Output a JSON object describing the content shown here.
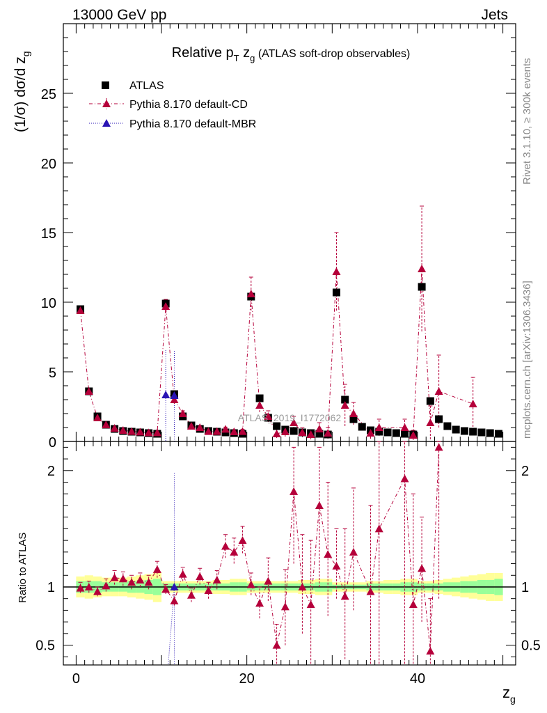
{
  "header": {
    "left": "13000 GeV pp",
    "right": "Jets"
  },
  "side_labels": {
    "rivet": "Rivet 3.1.10, ≥ 300k events",
    "url": "mcplots.cern.ch [arXiv:1306.3436]"
  },
  "watermark": "ATLAS_2019_I1772062",
  "legend": [
    {
      "label": "ATLAS",
      "marker": "square",
      "color": "#000000"
    },
    {
      "label": "Pythia 8.170 default-CD",
      "marker": "triangle",
      "color": "#b5003a"
    },
    {
      "label": "Pythia 8.170 default-MBR",
      "marker": "triangle",
      "color": "#2a14b4"
    }
  ],
  "colors": {
    "band_outer": "#ffff99",
    "band_inner": "#99ff99",
    "cd": "#b5003a",
    "mbr": "#2a14b4"
  },
  "chart_data": [
    {
      "type": "scatter",
      "panel": "main",
      "title": "Relative p_T z_g (ATLAS soft-drop observables)",
      "title_parts": {
        "a": "Relative p",
        "sub1": "T",
        "b": " z",
        "sub2": "g",
        "c": " (ATLAS soft-drop observables)"
      },
      "ylabel": "(1/σ) dσ/d z_g",
      "ylabel_parts": {
        "a": "(1/σ) dσ/d z",
        "sub": "g"
      },
      "xlim": [
        -1.5,
        51.5
      ],
      "ylim": [
        0,
        30
      ],
      "yticks": [
        0,
        5,
        10,
        15,
        20,
        25
      ],
      "x": [
        0.5,
        1.5,
        2.5,
        3.5,
        4.5,
        5.5,
        6.5,
        7.5,
        8.5,
        9.5,
        10.5,
        11.5,
        12.5,
        13.5,
        14.5,
        15.5,
        16.5,
        17.5,
        18.5,
        19.5,
        20.5,
        21.5,
        22.5,
        23.5,
        24.5,
        25.5,
        26.5,
        27.5,
        28.5,
        29.5,
        30.5,
        31.5,
        32.5,
        33.5,
        34.5,
        35.5,
        36.5,
        37.5,
        38.5,
        39.5,
        40.5,
        41.5,
        42.5,
        43.5,
        44.5,
        45.5,
        46.5,
        47.5,
        48.5,
        49.5
      ],
      "series": [
        {
          "name": "ATLAS",
          "values": [
            9.5,
            3.6,
            1.8,
            1.2,
            0.9,
            0.75,
            0.7,
            0.65,
            0.6,
            0.55,
            9.9,
            3.4,
            1.8,
            1.15,
            0.9,
            0.75,
            0.7,
            0.65,
            0.6,
            0.55,
            10.4,
            3.1,
            1.7,
            1.1,
            0.85,
            0.75,
            0.65,
            0.6,
            0.55,
            0.5,
            10.7,
            3.0,
            1.6,
            1.05,
            0.8,
            0.7,
            0.65,
            0.6,
            0.55,
            0.5,
            11.1,
            2.9,
            1.6,
            1.1,
            0.85,
            0.75,
            0.7,
            0.65,
            0.6,
            0.55
          ]
        },
        {
          "name": "Pythia 8.170 default-CD",
          "points": [
            {
              "x": 0.5,
              "y": 9.4,
              "err": 0.2
            },
            {
              "x": 1.5,
              "y": 3.6,
              "err": 0.15
            },
            {
              "x": 2.5,
              "y": 1.7,
              "err": 0.1
            },
            {
              "x": 3.5,
              "y": 1.2,
              "err": 0.1
            },
            {
              "x": 4.5,
              "y": 0.95,
              "err": 0.1
            },
            {
              "x": 5.5,
              "y": 0.8,
              "err": 0.1
            },
            {
              "x": 6.5,
              "y": 0.72,
              "err": 0.1
            },
            {
              "x": 7.5,
              "y": 0.68,
              "err": 0.1
            },
            {
              "x": 8.5,
              "y": 0.63,
              "err": 0.1
            },
            {
              "x": 9.5,
              "y": 0.63,
              "err": 0.1
            },
            {
              "x": 10.5,
              "y": 9.7,
              "err": 0.5
            },
            {
              "x": 11.5,
              "y": 3.0,
              "err": 0.3
            },
            {
              "x": 12.5,
              "y": 2.0,
              "err": 0.2
            },
            {
              "x": 13.5,
              "y": 1.1,
              "err": 0.15
            },
            {
              "x": 14.5,
              "y": 1.0,
              "err": 0.15
            },
            {
              "x": 15.5,
              "y": 0.72,
              "err": 0.12
            },
            {
              "x": 16.5,
              "y": 0.72,
              "err": 0.12
            },
            {
              "x": 17.5,
              "y": 0.88,
              "err": 0.15
            },
            {
              "x": 18.5,
              "y": 0.7,
              "err": 0.15
            },
            {
              "x": 19.5,
              "y": 0.72,
              "err": 0.15
            },
            {
              "x": 20.5,
              "y": 10.6,
              "err": 1.2
            },
            {
              "x": 21.5,
              "y": 2.6,
              "err": 0.5
            },
            {
              "x": 22.5,
              "y": 1.8,
              "err": 0.4
            },
            {
              "x": 23.5,
              "y": 0.55,
              "err": 0.3
            },
            {
              "x": 24.5,
              "y": 0.7,
              "err": 0.35
            },
            {
              "x": 25.5,
              "y": 1.35,
              "err": 0.45
            },
            {
              "x": 26.5,
              "y": 0.65,
              "err": 0.35
            },
            {
              "x": 27.5,
              "y": 0.5,
              "err": 0.35
            },
            {
              "x": 28.5,
              "y": 0.9,
              "err": 0.45
            },
            {
              "x": 29.5,
              "y": 0.6,
              "err": 0.4
            },
            {
              "x": 30.5,
              "y": 12.2,
              "err": 2.8
            },
            {
              "x": 31.5,
              "y": 2.6,
              "err": 1.5
            },
            {
              "x": 32.5,
              "y": 2.0,
              "err": 0.8
            },
            {
              "x": 34.5,
              "y": 0.6,
              "err": 0.4
            },
            {
              "x": 35.5,
              "y": 1.0,
              "err": 0.6
            },
            {
              "x": 38.5,
              "y": 1.0,
              "err": 0.6
            },
            {
              "x": 39.5,
              "y": 0.45,
              "err": 0.35
            },
            {
              "x": 40.5,
              "y": 12.4,
              "err": 4.5
            },
            {
              "x": 41.5,
              "y": 1.35,
              "err": 1.2
            },
            {
              "x": 42.5,
              "y": 3.6,
              "err": 2.6
            },
            {
              "x": 46.5,
              "y": 2.7,
              "err": 1.9
            }
          ]
        },
        {
          "name": "Pythia 8.170 default-MBR",
          "points": [
            {
              "x": 10.5,
              "y": 3.35,
              "err": 3.3
            },
            {
              "x": 11.5,
              "y": 3.3,
              "err": 3.3
            }
          ]
        }
      ]
    },
    {
      "type": "scatter",
      "panel": "ratio",
      "ylabel": "Ratio to ATLAS",
      "xlabel": "z_g",
      "xlabel_parts": {
        "a": "z",
        "sub": "g"
      },
      "xlim": [
        -1.5,
        51.5
      ],
      "ylim": [
        0.33,
        2.25
      ],
      "yticks": [
        0.5,
        1,
        2
      ],
      "yticklabels": [
        "0.5",
        "1",
        "2"
      ],
      "xticks": [
        0,
        20,
        40
      ],
      "bands": [
        {
          "x0": 0,
          "x1": 1,
          "outer": 0.09,
          "inner": 0.05
        },
        {
          "x0": 1,
          "x1": 2,
          "outer": 0.1,
          "inner": 0.05
        },
        {
          "x0": 2,
          "x1": 3,
          "outer": 0.09,
          "inner": 0.05
        },
        {
          "x0": 3,
          "x1": 4,
          "outer": 0.08,
          "inner": 0.04
        },
        {
          "x0": 4,
          "x1": 5,
          "outer": 0.08,
          "inner": 0.04
        },
        {
          "x0": 5,
          "x1": 6,
          "outer": 0.08,
          "inner": 0.04
        },
        {
          "x0": 6,
          "x1": 7,
          "outer": 0.09,
          "inner": 0.05
        },
        {
          "x0": 7,
          "x1": 8,
          "outer": 0.1,
          "inner": 0.05
        },
        {
          "x0": 8,
          "x1": 9,
          "outer": 0.11,
          "inner": 0.06
        },
        {
          "x0": 9,
          "x1": 10,
          "outer": 0.13,
          "inner": 0.07
        },
        {
          "x0": 10,
          "x1": 11,
          "outer": 0.05,
          "inner": 0.03
        },
        {
          "x0": 11,
          "x1": 12,
          "outer": 0.05,
          "inner": 0.03
        },
        {
          "x0": 12,
          "x1": 13,
          "outer": 0.05,
          "inner": 0.03
        },
        {
          "x0": 13,
          "x1": 14,
          "outer": 0.05,
          "inner": 0.03
        },
        {
          "x0": 14,
          "x1": 15,
          "outer": 0.05,
          "inner": 0.03
        },
        {
          "x0": 15,
          "x1": 16,
          "outer": 0.05,
          "inner": 0.03
        },
        {
          "x0": 16,
          "x1": 17,
          "outer": 0.06,
          "inner": 0.03
        },
        {
          "x0": 17,
          "x1": 18,
          "outer": 0.06,
          "inner": 0.03
        },
        {
          "x0": 18,
          "x1": 19,
          "outer": 0.07,
          "inner": 0.04
        },
        {
          "x0": 19,
          "x1": 20,
          "outer": 0.07,
          "inner": 0.04
        },
        {
          "x0": 20,
          "x1": 21,
          "outer": 0.05,
          "inner": 0.03
        },
        {
          "x0": 21,
          "x1": 22,
          "outer": 0.05,
          "inner": 0.03
        },
        {
          "x0": 22,
          "x1": 23,
          "outer": 0.05,
          "inner": 0.03
        },
        {
          "x0": 23,
          "x1": 24,
          "outer": 0.05,
          "inner": 0.03
        },
        {
          "x0": 24,
          "x1": 25,
          "outer": 0.05,
          "inner": 0.03
        },
        {
          "x0": 25,
          "x1": 26,
          "outer": 0.05,
          "inner": 0.03
        },
        {
          "x0": 26,
          "x1": 27,
          "outer": 0.06,
          "inner": 0.03
        },
        {
          "x0": 27,
          "x1": 28,
          "outer": 0.06,
          "inner": 0.03
        },
        {
          "x0": 28,
          "x1": 29,
          "outer": 0.07,
          "inner": 0.04
        },
        {
          "x0": 29,
          "x1": 30,
          "outer": 0.07,
          "inner": 0.04
        },
        {
          "x0": 30,
          "x1": 31,
          "outer": 0.04,
          "inner": 0.02
        },
        {
          "x0": 31,
          "x1": 32,
          "outer": 0.04,
          "inner": 0.02
        },
        {
          "x0": 32,
          "x1": 33,
          "outer": 0.04,
          "inner": 0.02
        },
        {
          "x0": 33,
          "x1": 34,
          "outer": 0.04,
          "inner": 0.02
        },
        {
          "x0": 34,
          "x1": 35,
          "outer": 0.05,
          "inner": 0.03
        },
        {
          "x0": 35,
          "x1": 36,
          "outer": 0.05,
          "inner": 0.03
        },
        {
          "x0": 36,
          "x1": 37,
          "outer": 0.06,
          "inner": 0.03
        },
        {
          "x0": 37,
          "x1": 38,
          "outer": 0.06,
          "inner": 0.03
        },
        {
          "x0": 38,
          "x1": 39,
          "outer": 0.07,
          "inner": 0.04
        },
        {
          "x0": 39,
          "x1": 40,
          "outer": 0.07,
          "inner": 0.04
        },
        {
          "x0": 40,
          "x1": 41,
          "outer": 0.05,
          "inner": 0.03
        },
        {
          "x0": 41,
          "x1": 42,
          "outer": 0.05,
          "inner": 0.03
        },
        {
          "x0": 42,
          "x1": 43,
          "outer": 0.06,
          "inner": 0.03
        },
        {
          "x0": 43,
          "x1": 44,
          "outer": 0.07,
          "inner": 0.04
        },
        {
          "x0": 44,
          "x1": 45,
          "outer": 0.08,
          "inner": 0.04
        },
        {
          "x0": 45,
          "x1": 46,
          "outer": 0.09,
          "inner": 0.05
        },
        {
          "x0": 46,
          "x1": 47,
          "outer": 0.1,
          "inner": 0.05
        },
        {
          "x0": 47,
          "x1": 48,
          "outer": 0.11,
          "inner": 0.06
        },
        {
          "x0": 48,
          "x1": 49,
          "outer": 0.12,
          "inner": 0.06
        },
        {
          "x0": 49,
          "x1": 50,
          "outer": 0.12,
          "inner": 0.07
        }
      ],
      "series": [
        {
          "name": "Pythia 8.170 default-CD",
          "points": [
            {
              "x": 0.5,
              "y": 0.99,
              "lo": 0.95,
              "hi": 1.04
            },
            {
              "x": 1.5,
              "y": 1.0,
              "lo": 0.95,
              "hi": 1.05
            },
            {
              "x": 2.5,
              "y": 0.96,
              "lo": 0.92,
              "hi": 1.0
            },
            {
              "x": 3.5,
              "y": 1.01,
              "lo": 0.96,
              "hi": 1.07
            },
            {
              "x": 4.5,
              "y": 1.08,
              "lo": 1.02,
              "hi": 1.14
            },
            {
              "x": 5.5,
              "y": 1.07,
              "lo": 1.01,
              "hi": 1.13
            },
            {
              "x": 6.5,
              "y": 1.04,
              "lo": 0.98,
              "hi": 1.1
            },
            {
              "x": 7.5,
              "y": 1.06,
              "lo": 1.0,
              "hi": 1.12
            },
            {
              "x": 8.5,
              "y": 1.04,
              "lo": 0.98,
              "hi": 1.1
            },
            {
              "x": 9.5,
              "y": 1.15,
              "lo": 1.08,
              "hi": 1.22
            },
            {
              "x": 10.5,
              "y": 0.98,
              "lo": 0.94,
              "hi": 1.02
            },
            {
              "x": 11.5,
              "y": 0.88,
              "lo": 0.84,
              "hi": 0.93
            },
            {
              "x": 12.5,
              "y": 1.11,
              "lo": 1.05,
              "hi": 1.17
            },
            {
              "x": 13.5,
              "y": 0.93,
              "lo": 0.87,
              "hi": 0.99
            },
            {
              "x": 14.5,
              "y": 1.09,
              "lo": 1.02,
              "hi": 1.16
            },
            {
              "x": 15.5,
              "y": 0.97,
              "lo": 0.9,
              "hi": 1.04
            },
            {
              "x": 16.5,
              "y": 1.06,
              "lo": 0.98,
              "hi": 1.14
            },
            {
              "x": 17.5,
              "y": 1.35,
              "lo": 1.25,
              "hi": 1.45
            },
            {
              "x": 18.5,
              "y": 1.3,
              "lo": 1.2,
              "hi": 1.42
            },
            {
              "x": 19.5,
              "y": 1.4,
              "lo": 1.29,
              "hi": 1.52
            },
            {
              "x": 20.5,
              "y": 1.02,
              "lo": 0.93,
              "hi": 1.12
            },
            {
              "x": 21.5,
              "y": 0.86,
              "lo": 0.73,
              "hi": 1.0
            },
            {
              "x": 22.5,
              "y": 1.05,
              "lo": 0.88,
              "hi": 1.25
            },
            {
              "x": 23.5,
              "y": 0.5,
              "lo": 0.34,
              "hi": 0.68
            },
            {
              "x": 24.5,
              "y": 0.83,
              "lo": 0.5,
              "hi": 1.15
            },
            {
              "x": 25.5,
              "y": 1.82,
              "lo": 1.2,
              "hi": 2.2
            },
            {
              "x": 26.5,
              "y": 1.0,
              "lo": 0.6,
              "hi": 1.45
            },
            {
              "x": 27.5,
              "y": 0.85,
              "lo": 0.34,
              "hi": 1.4
            },
            {
              "x": 28.5,
              "y": 1.7,
              "lo": 1.0,
              "hi": 2.2
            },
            {
              "x": 29.5,
              "y": 1.28,
              "lo": 0.75,
              "hi": 1.9
            },
            {
              "x": 30.5,
              "y": 1.18,
              "lo": 0.9,
              "hi": 1.5
            },
            {
              "x": 31.5,
              "y": 0.92,
              "lo": 0.38,
              "hi": 1.5
            },
            {
              "x": 32.5,
              "y": 1.3,
              "lo": 0.8,
              "hi": 1.85
            },
            {
              "x": 34.5,
              "y": 0.96,
              "lo": 0.34,
              "hi": 1.7
            },
            {
              "x": 35.5,
              "y": 1.5,
              "lo": 0.34,
              "hi": 2.25
            },
            {
              "x": 38.5,
              "y": 1.93,
              "lo": 0.34,
              "hi": 2.25
            },
            {
              "x": 39.5,
              "y": 0.85,
              "lo": 0.34,
              "hi": 1.8
            },
            {
              "x": 40.5,
              "y": 1.16,
              "lo": 0.7,
              "hi": 1.6
            },
            {
              "x": 41.5,
              "y": 0.45,
              "lo": 0.34,
              "hi": 0.9
            },
            {
              "x": 42.5,
              "y": 2.2,
              "lo": 0.9,
              "hi": 2.25
            }
          ]
        },
        {
          "name": "Pythia 8.170 default-MBR",
          "points": [
            {
              "x": 11.5,
              "y": 1.0,
              "lo": 0.34,
              "hi": 1.98
            }
          ]
        }
      ]
    }
  ]
}
